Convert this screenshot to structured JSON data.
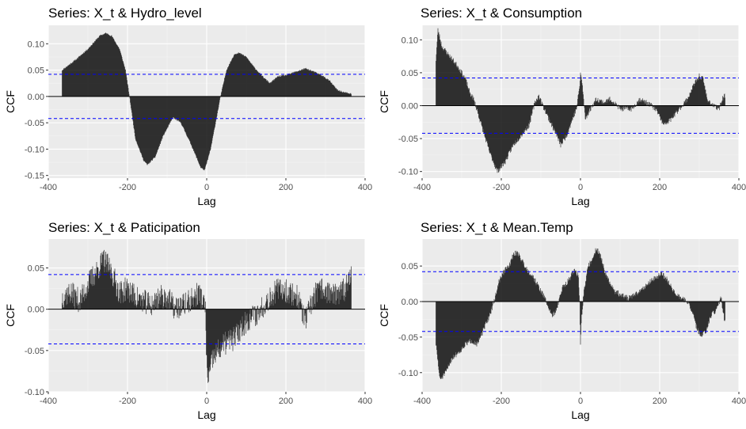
{
  "colors": {
    "panel_bg": "#ebebeb",
    "grid_major": "#ffffff",
    "grid_minor": "#f4f4f4",
    "bar": "#000000",
    "ci_line": "#0000ff",
    "tick_text": "#4d4d4d"
  },
  "chart_data": [
    {
      "type": "bar",
      "title": "Series: X_t & Hydro_level",
      "xlabel": "Lag",
      "ylabel": "CCF",
      "xlim": [
        -400,
        400
      ],
      "ylim": [
        -0.155,
        0.135
      ],
      "x_ticks": [
        -400,
        -200,
        0,
        200,
        400
      ],
      "x_tick_labels": [
        "-400",
        "-200",
        "0",
        "200",
        "400"
      ],
      "y_ticks": [
        -0.15,
        -0.1,
        -0.05,
        0,
        0.05,
        0.1
      ],
      "y_tick_labels": [
        "-0.15",
        "-0.10",
        "-0.05",
        "0.00",
        "0.05",
        "0.10"
      ],
      "ci": 0.042,
      "lag_range": [
        -365,
        365
      ],
      "grid": true,
      "keypoints": [
        [
          -365,
          0.05
        ],
        [
          -330,
          0.07
        ],
        [
          -300,
          0.09
        ],
        [
          -270,
          0.115
        ],
        [
          -255,
          0.12
        ],
        [
          -240,
          0.115
        ],
        [
          -220,
          0.09
        ],
        [
          -205,
          0.05
        ],
        [
          -195,
          0.0
        ],
        [
          -180,
          -0.08
        ],
        [
          -160,
          -0.12
        ],
        [
          -150,
          -0.13
        ],
        [
          -130,
          -0.115
        ],
        [
          -110,
          -0.075
        ],
        [
          -85,
          -0.04
        ],
        [
          -65,
          -0.05
        ],
        [
          -40,
          -0.09
        ],
        [
          -15,
          -0.135
        ],
        [
          -5,
          -0.14
        ],
        [
          10,
          -0.1
        ],
        [
          25,
          -0.04
        ],
        [
          35,
          0.0
        ],
        [
          50,
          0.05
        ],
        [
          70,
          0.08
        ],
        [
          80,
          0.083
        ],
        [
          100,
          0.075
        ],
        [
          120,
          0.055
        ],
        [
          145,
          0.035
        ],
        [
          160,
          0.025
        ],
        [
          180,
          0.038
        ],
        [
          200,
          0.04
        ],
        [
          230,
          0.048
        ],
        [
          250,
          0.053
        ],
        [
          270,
          0.047
        ],
        [
          290,
          0.04
        ],
        [
          310,
          0.03
        ],
        [
          330,
          0.012
        ],
        [
          345,
          0.008
        ],
        [
          365,
          0.005
        ]
      ],
      "noise": 0.0015,
      "seed": 11
    },
    {
      "type": "bar",
      "title": "Series: X_t & Consumption",
      "xlabel": "Lag",
      "ylabel": "CCF",
      "xlim": [
        -400,
        400
      ],
      "ylim": [
        -0.11,
        0.122
      ],
      "x_ticks": [
        -400,
        -200,
        0,
        200,
        400
      ],
      "x_tick_labels": [
        "-400",
        "-200",
        "0",
        "200",
        "400"
      ],
      "y_ticks": [
        -0.1,
        -0.05,
        0,
        0.05,
        0.1
      ],
      "y_tick_labels": [
        "-0.10",
        "-0.05",
        "0.00",
        "0.05",
        "0.10"
      ],
      "ci": 0.042,
      "lag_range": [
        -365,
        365
      ],
      "grid": true,
      "keypoints": [
        [
          -365,
          0.07
        ],
        [
          -360,
          0.115
        ],
        [
          -350,
          0.09
        ],
        [
          -330,
          0.075
        ],
        [
          -310,
          0.06
        ],
        [
          -290,
          0.04
        ],
        [
          -280,
          0.02
        ],
        [
          -270,
          0.01
        ],
        [
          -262,
          -0.005
        ],
        [
          -250,
          -0.03
        ],
        [
          -230,
          -0.07
        ],
        [
          -210,
          -0.1
        ],
        [
          -190,
          -0.085
        ],
        [
          -170,
          -0.06
        ],
        [
          -150,
          -0.045
        ],
        [
          -130,
          -0.03
        ],
        [
          -115,
          0.005
        ],
        [
          -105,
          0.015
        ],
        [
          -95,
          0.0
        ],
        [
          -80,
          -0.02
        ],
        [
          -60,
          -0.045
        ],
        [
          -50,
          -0.06
        ],
        [
          -35,
          -0.045
        ],
        [
          -20,
          -0.02
        ],
        [
          -10,
          -0.005
        ],
        [
          -2,
          0.03
        ],
        [
          0,
          0.05
        ],
        [
          5,
          0.03
        ],
        [
          12,
          -0.02
        ],
        [
          25,
          -0.005
        ],
        [
          40,
          0.01
        ],
        [
          60,
          0.005
        ],
        [
          75,
          0.01
        ],
        [
          85,
          0.005
        ],
        [
          100,
          -0.005
        ],
        [
          130,
          -0.005
        ],
        [
          150,
          0.01
        ],
        [
          165,
          0.005
        ],
        [
          180,
          0.0
        ],
        [
          195,
          -0.01
        ],
        [
          210,
          -0.03
        ],
        [
          230,
          -0.02
        ],
        [
          250,
          -0.005
        ],
        [
          270,
          0.01
        ],
        [
          285,
          0.03
        ],
        [
          300,
          0.045
        ],
        [
          310,
          0.04
        ],
        [
          320,
          0.01
        ],
        [
          335,
          0.0
        ],
        [
          350,
          -0.005
        ],
        [
          358,
          0.01
        ],
        [
          365,
          0.015
        ]
      ],
      "noise": 0.004,
      "seed": 23
    },
    {
      "type": "bar",
      "title": "Series: X_t & Paticipation",
      "xlabel": "Lag",
      "ylabel": "CCF",
      "xlim": [
        -400,
        400
      ],
      "ylim": [
        -0.1,
        0.085
      ],
      "x_ticks": [
        -400,
        -200,
        0,
        200,
        400
      ],
      "x_tick_labels": [
        "-400",
        "-200",
        "0",
        "200",
        "400"
      ],
      "y_ticks": [
        -0.1,
        -0.05,
        0,
        0.05
      ],
      "y_tick_labels": [
        "-0.10",
        "-0.05",
        "0.00",
        "0.05"
      ],
      "ci": 0.042,
      "lag_range": [
        -365,
        365
      ],
      "grid": true,
      "keypoints": [
        [
          -365,
          0.015
        ],
        [
          -345,
          0.02
        ],
        [
          -320,
          0.01
        ],
        [
          -300,
          0.03
        ],
        [
          -280,
          0.045
        ],
        [
          -260,
          0.06
        ],
        [
          -240,
          0.045
        ],
        [
          -220,
          0.02
        ],
        [
          -200,
          0.025
        ],
        [
          -180,
          0.015
        ],
        [
          -160,
          0.01
        ],
        [
          -140,
          0.005
        ],
        [
          -120,
          0.015
        ],
        [
          -100,
          0.015
        ],
        [
          -80,
          0.0
        ],
        [
          -60,
          0.005
        ],
        [
          -40,
          0.01
        ],
        [
          -20,
          0.02
        ],
        [
          -10,
          0.01
        ],
        [
          -3,
          0.0
        ],
        [
          0,
          -0.07
        ],
        [
          5,
          -0.085
        ],
        [
          15,
          -0.06
        ],
        [
          30,
          -0.05
        ],
        [
          50,
          -0.04
        ],
        [
          70,
          -0.035
        ],
        [
          90,
          -0.02
        ],
        [
          110,
          -0.01
        ],
        [
          130,
          -0.005
        ],
        [
          150,
          0.01
        ],
        [
          170,
          0.02
        ],
        [
          190,
          0.025
        ],
        [
          210,
          0.02
        ],
        [
          230,
          0.015
        ],
        [
          250,
          -0.015
        ],
        [
          270,
          0.015
        ],
        [
          290,
          0.025
        ],
        [
          310,
          0.02
        ],
        [
          330,
          0.015
        ],
        [
          350,
          0.025
        ],
        [
          365,
          0.05
        ]
      ],
      "noise": 0.015,
      "seed": 37
    },
    {
      "type": "bar",
      "title": "Series: X_t & Mean.Temp",
      "xlabel": "Lag",
      "ylabel": "CCF",
      "xlim": [
        -400,
        400
      ],
      "ylim": [
        -0.127,
        0.088
      ],
      "x_ticks": [
        -400,
        -200,
        0,
        200,
        400
      ],
      "x_tick_labels": [
        "-400",
        "-200",
        "0",
        "200",
        "400"
      ],
      "y_ticks": [
        -0.1,
        -0.05,
        0,
        0.05
      ],
      "y_tick_labels": [
        "-0.10",
        "-0.05",
        "0.00",
        "0.05"
      ],
      "ci": 0.042,
      "lag_range": [
        -365,
        365
      ],
      "grid": true,
      "keypoints": [
        [
          -365,
          -0.06
        ],
        [
          -355,
          -0.11
        ],
        [
          -340,
          -0.1
        ],
        [
          -325,
          -0.08
        ],
        [
          -305,
          -0.07
        ],
        [
          -290,
          -0.06
        ],
        [
          -275,
          -0.055
        ],
        [
          -260,
          -0.06
        ],
        [
          -245,
          -0.04
        ],
        [
          -230,
          -0.02
        ],
        [
          -218,
          0.0
        ],
        [
          -205,
          0.03
        ],
        [
          -190,
          0.045
        ],
        [
          -180,
          0.05
        ],
        [
          -170,
          0.065
        ],
        [
          -160,
          0.07
        ],
        [
          -150,
          0.06
        ],
        [
          -135,
          0.045
        ],
        [
          -120,
          0.035
        ],
        [
          -105,
          0.02
        ],
        [
          -90,
          0.005
        ],
        [
          -80,
          -0.01
        ],
        [
          -70,
          -0.02
        ],
        [
          -60,
          -0.01
        ],
        [
          -45,
          0.02
        ],
        [
          -30,
          0.03
        ],
        [
          -15,
          0.045
        ],
        [
          -5,
          0.035
        ],
        [
          -2,
          0.0
        ],
        [
          0,
          -0.06
        ],
        [
          3,
          -0.02
        ],
        [
          10,
          0.02
        ],
        [
          20,
          0.05
        ],
        [
          30,
          0.06
        ],
        [
          40,
          0.075
        ],
        [
          50,
          0.065
        ],
        [
          60,
          0.045
        ],
        [
          70,
          0.03
        ],
        [
          85,
          0.015
        ],
        [
          100,
          0.01
        ],
        [
          120,
          0.005
        ],
        [
          140,
          0.01
        ],
        [
          160,
          0.02
        ],
        [
          180,
          0.03
        ],
        [
          195,
          0.035
        ],
        [
          205,
          0.04
        ],
        [
          220,
          0.03
        ],
        [
          240,
          0.01
        ],
        [
          255,
          0.005
        ],
        [
          268,
          0.0
        ],
        [
          280,
          -0.01
        ],
        [
          292,
          -0.035
        ],
        [
          305,
          -0.05
        ],
        [
          318,
          -0.04
        ],
        [
          330,
          -0.02
        ],
        [
          345,
          -0.01
        ],
        [
          355,
          0.005
        ],
        [
          365,
          -0.03
        ]
      ],
      "noise": 0.004,
      "seed": 51
    }
  ]
}
